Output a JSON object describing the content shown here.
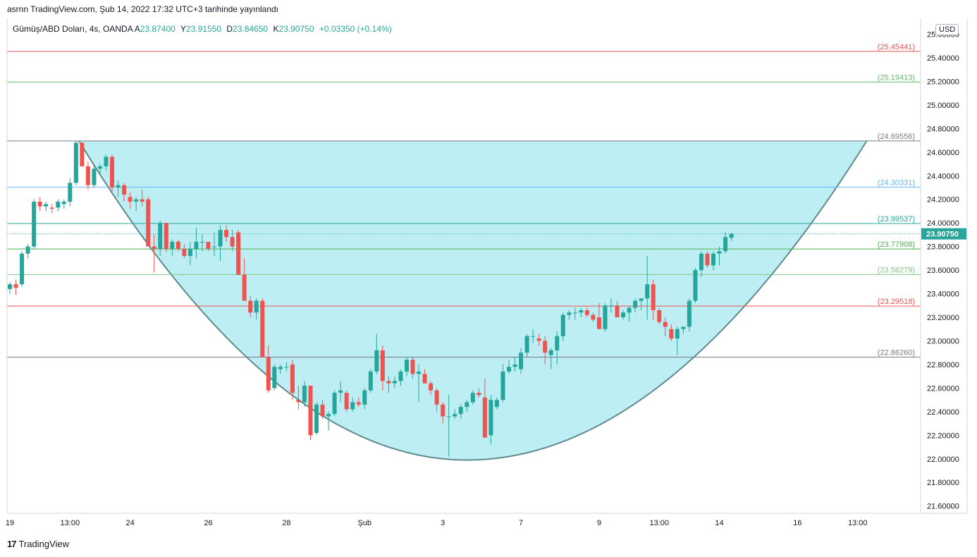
{
  "header": {
    "title": "asrnn TradingView.com, Şub 14, 2022 17:32 UTC+3 tarihinde yayınlandı"
  },
  "symbol": {
    "name": "Gümüş/ABD Doları, 4s, OANDA",
    "open_label": "A",
    "open": "23.87400",
    "high_label": "Y",
    "high": "23.91550",
    "low_label": "D",
    "low": "23.84650",
    "close_label": "K",
    "close": "23.90750",
    "change": "+0.03350 (+0.14%)"
  },
  "currency": "USD",
  "footer": {
    "logo_text": "TradingView",
    "logo_mark": "17"
  },
  "colors": {
    "up": "#26a69a",
    "down": "#ef5350",
    "bowl_fill": "#b2ebf2",
    "bowl_stroke": "#5f8a8b",
    "last_price_bg": "#26a69a"
  },
  "chart_data": {
    "type": "candlestick",
    "ylim": [
      21.55,
      25.7
    ],
    "y_ticks": [
      "21.60000",
      "21.80000",
      "22.00000",
      "22.20000",
      "22.40000",
      "22.60000",
      "22.80000",
      "23.00000",
      "23.20000",
      "23.40000",
      "23.60000",
      "23.80000",
      "24.00000",
      "24.20000",
      "24.40000",
      "24.60000",
      "24.80000",
      "25.00000",
      "25.20000",
      "25.40000",
      "25.60000"
    ],
    "x_ticks": [
      {
        "label": "19",
        "bar": 0
      },
      {
        "label": "13:00",
        "bar": 10
      },
      {
        "label": "24",
        "bar": 20
      },
      {
        "label": "26",
        "bar": 33
      },
      {
        "label": "28",
        "bar": 46
      },
      {
        "label": "Şub",
        "bar": 59
      },
      {
        "label": "3",
        "bar": 72
      },
      {
        "label": "7",
        "bar": 85
      },
      {
        "label": "9",
        "bar": 98
      },
      {
        "label": "13:00",
        "bar": 108
      },
      {
        "label": "14",
        "bar": 118
      },
      {
        "label": "16",
        "bar": 131
      },
      {
        "label": "13:00",
        "bar": 141
      }
    ],
    "levels": [
      {
        "value": 25.45441,
        "label": "(25.45441)",
        "color": "#ef5350"
      },
      {
        "value": 25.19413,
        "label": "(25.19413)",
        "color": "#66bb6a"
      },
      {
        "value": 24.69556,
        "label": "(24.69556)",
        "color": "#787b86"
      },
      {
        "value": 24.30331,
        "label": "(24.30331)",
        "color": "#64b5f6"
      },
      {
        "value": 23.99537,
        "label": "(23.99537)",
        "color": "#26a69a"
      },
      {
        "value": 23.77908,
        "label": "(23.77908)",
        "color": "#4caf50"
      },
      {
        "value": 23.56279,
        "label": "(23.56279)",
        "color": "#81c784"
      },
      {
        "value": 23.29518,
        "label": "(23.29518)",
        "color": "#ef5350"
      },
      {
        "value": 22.8626,
        "label": "(22.86260)",
        "color": "#787b86"
      }
    ],
    "last_price": {
      "value": 23.9075,
      "label": "23.90750"
    },
    "bowl": {
      "left_bar": 11.5,
      "right_bar": 142.5,
      "top": 24.69556,
      "bottom_bar": 76,
      "bottom": 21.99
    },
    "candles": [
      [
        23.44,
        23.5,
        23.4,
        23.48
      ],
      [
        23.48,
        23.52,
        23.39,
        23.45
      ],
      [
        23.48,
        23.76,
        23.46,
        23.74
      ],
      [
        23.74,
        23.82,
        23.7,
        23.8
      ],
      [
        23.8,
        24.2,
        23.78,
        24.18
      ],
      [
        24.18,
        24.22,
        24.1,
        24.14
      ],
      [
        24.14,
        24.18,
        24.1,
        24.16
      ],
      [
        24.13,
        24.16,
        24.08,
        24.12
      ],
      [
        24.13,
        24.2,
        24.1,
        24.18
      ],
      [
        24.16,
        24.2,
        24.12,
        24.18
      ],
      [
        24.18,
        24.38,
        24.14,
        24.34
      ],
      [
        24.34,
        24.7,
        24.32,
        24.68
      ],
      [
        24.68,
        24.68,
        24.48,
        24.48
      ],
      [
        24.48,
        24.52,
        24.28,
        24.32
      ],
      [
        24.32,
        24.48,
        24.3,
        24.46
      ],
      [
        24.46,
        24.5,
        24.4,
        24.48
      ],
      [
        24.48,
        24.58,
        24.44,
        24.56
      ],
      [
        24.56,
        24.58,
        24.26,
        24.3
      ],
      [
        24.3,
        24.36,
        24.22,
        24.32
      ],
      [
        24.32,
        24.34,
        24.18,
        24.24
      ],
      [
        24.22,
        24.26,
        24.12,
        24.18
      ],
      [
        24.18,
        24.22,
        24.1,
        24.2
      ],
      [
        24.2,
        24.28,
        24.14,
        24.18
      ],
      [
        24.2,
        24.22,
        23.8,
        23.8
      ],
      [
        23.8,
        23.9,
        23.58,
        23.78
      ],
      [
        23.78,
        24.02,
        23.72,
        24.0
      ],
      [
        24.0,
        24.0,
        23.75,
        23.78
      ],
      [
        23.78,
        23.86,
        23.72,
        23.84
      ],
      [
        23.84,
        23.86,
        23.76,
        23.78
      ],
      [
        23.78,
        23.82,
        23.7,
        23.72
      ],
      [
        23.72,
        23.84,
        23.64,
        23.78
      ],
      [
        23.78,
        23.96,
        23.7,
        23.84
      ],
      [
        23.84,
        23.9,
        23.76,
        23.84
      ],
      [
        23.84,
        23.84,
        23.76,
        23.78
      ],
      [
        23.8,
        23.92,
        23.72,
        23.8
      ],
      [
        23.8,
        23.98,
        23.68,
        23.94
      ],
      [
        23.94,
        23.98,
        23.84,
        23.88
      ],
      [
        23.88,
        23.94,
        23.76,
        23.8
      ],
      [
        23.92,
        23.94,
        23.6,
        23.56
      ],
      [
        23.56,
        23.7,
        23.38,
        23.34
      ],
      [
        23.34,
        23.38,
        23.2,
        23.24
      ],
      [
        23.24,
        23.36,
        23.18,
        23.34
      ],
      [
        23.34,
        23.36,
        22.86,
        22.86
      ],
      [
        22.86,
        22.96,
        22.56,
        22.58
      ],
      [
        22.6,
        22.8,
        22.58,
        22.78
      ],
      [
        22.76,
        22.8,
        22.72,
        22.78
      ],
      [
        22.78,
        22.82,
        22.74,
        22.78
      ],
      [
        22.8,
        22.84,
        22.5,
        22.56
      ],
      [
        22.5,
        22.62,
        22.42,
        22.48
      ],
      [
        22.48,
        22.66,
        22.44,
        22.62
      ],
      [
        22.62,
        22.62,
        22.16,
        22.2
      ],
      [
        22.22,
        22.48,
        22.2,
        22.46
      ],
      [
        22.46,
        22.5,
        22.34,
        22.36
      ],
      [
        22.36,
        22.4,
        22.24,
        22.38
      ],
      [
        22.38,
        22.58,
        22.36,
        22.56
      ],
      [
        22.56,
        22.66,
        22.48,
        22.58
      ],
      [
        22.56,
        22.58,
        22.4,
        22.42
      ],
      [
        22.42,
        22.52,
        22.4,
        22.48
      ],
      [
        22.48,
        22.52,
        22.44,
        22.46
      ],
      [
        22.46,
        22.6,
        22.42,
        22.58
      ],
      [
        22.58,
        22.76,
        22.56,
        22.74
      ],
      [
        22.74,
        23.06,
        22.72,
        22.92
      ],
      [
        22.92,
        22.96,
        22.58,
        22.66
      ],
      [
        22.66,
        22.7,
        22.56,
        22.64
      ],
      [
        22.64,
        22.7,
        22.6,
        22.66
      ],
      [
        22.66,
        22.76,
        22.62,
        22.74
      ],
      [
        22.74,
        22.86,
        22.7,
        22.84
      ],
      [
        22.84,
        22.86,
        22.68,
        22.72
      ],
      [
        22.72,
        22.8,
        22.48,
        22.74
      ],
      [
        22.72,
        22.76,
        22.64,
        22.64
      ],
      [
        22.64,
        22.66,
        22.54,
        22.58
      ],
      [
        22.58,
        22.6,
        22.4,
        22.46
      ],
      [
        22.46,
        22.48,
        22.3,
        22.36
      ],
      [
        22.36,
        22.54,
        22.02,
        22.36
      ],
      [
        22.36,
        22.42,
        22.34,
        22.38
      ],
      [
        22.38,
        22.46,
        22.34,
        22.44
      ],
      [
        22.44,
        22.5,
        22.4,
        22.48
      ],
      [
        22.48,
        22.58,
        22.46,
        22.56
      ],
      [
        22.56,
        22.6,
        22.52,
        22.54
      ],
      [
        22.52,
        22.68,
        22.18,
        22.18
      ],
      [
        22.2,
        22.54,
        22.12,
        22.5
      ],
      [
        22.44,
        22.52,
        22.42,
        22.5
      ],
      [
        22.5,
        22.8,
        22.48,
        22.74
      ],
      [
        22.74,
        22.84,
        22.72,
        22.78
      ],
      [
        22.78,
        22.86,
        22.74,
        22.8
      ],
      [
        22.76,
        22.94,
        22.72,
        22.9
      ],
      [
        22.9,
        23.06,
        22.86,
        23.04
      ],
      [
        23.04,
        23.1,
        22.98,
        23.04
      ],
      [
        23.02,
        23.06,
        22.96,
        23.0
      ],
      [
        23.0,
        23.04,
        22.8,
        22.9
      ],
      [
        22.88,
        22.94,
        22.76,
        22.92
      ],
      [
        22.92,
        23.08,
        22.8,
        23.04
      ],
      [
        23.04,
        23.24,
        23.0,
        23.22
      ],
      [
        23.22,
        23.26,
        23.18,
        23.24
      ],
      [
        23.24,
        23.28,
        23.18,
        23.24
      ],
      [
        23.24,
        23.28,
        23.2,
        23.26
      ],
      [
        23.26,
        23.28,
        23.2,
        23.22
      ],
      [
        23.22,
        23.24,
        23.16,
        23.18
      ],
      [
        23.2,
        23.32,
        23.1,
        23.1
      ],
      [
        23.1,
        23.32,
        23.08,
        23.3
      ],
      [
        23.3,
        23.36,
        23.24,
        23.3
      ],
      [
        23.3,
        23.34,
        23.2,
        23.2
      ],
      [
        23.2,
        23.26,
        23.18,
        23.24
      ],
      [
        23.24,
        23.3,
        23.16,
        23.28
      ],
      [
        23.28,
        23.36,
        23.24,
        23.34
      ],
      [
        23.34,
        23.36,
        23.26,
        23.36
      ],
      [
        23.36,
        23.72,
        23.18,
        23.48
      ],
      [
        23.48,
        23.52,
        23.18,
        23.26
      ],
      [
        23.26,
        23.28,
        23.14,
        23.16
      ],
      [
        23.16,
        23.2,
        23.04,
        23.12
      ],
      [
        23.1,
        23.14,
        23.0,
        23.02
      ],
      [
        23.02,
        23.12,
        22.88,
        23.1
      ],
      [
        23.1,
        23.12,
        23.06,
        23.12
      ],
      [
        23.12,
        23.36,
        23.08,
        23.34
      ],
      [
        23.34,
        23.62,
        23.32,
        23.6
      ],
      [
        23.6,
        23.76,
        23.54,
        23.74
      ],
      [
        23.74,
        23.76,
        23.62,
        23.64
      ],
      [
        23.64,
        23.76,
        23.6,
        23.74
      ],
      [
        23.74,
        23.8,
        23.64,
        23.76
      ],
      [
        23.76,
        23.92,
        23.74,
        23.88
      ],
      [
        23.874,
        23.9155,
        23.8465,
        23.9075
      ]
    ]
  }
}
